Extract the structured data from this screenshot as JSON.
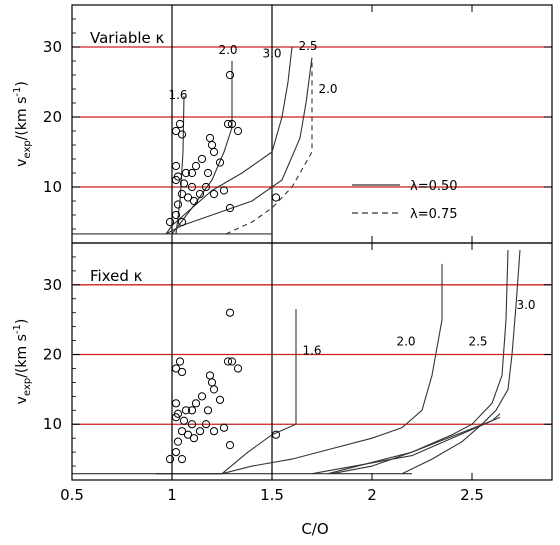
{
  "chart_data": {
    "type": "line",
    "xlabel": "C/O",
    "xlim": [
      0.5,
      2.9
    ],
    "x_ticks": [
      0.5,
      1,
      1.5,
      2,
      2.5
    ],
    "x_tick_labels": [
      "0.5",
      "1",
      "1.5",
      "2",
      "2.5"
    ],
    "panels": [
      {
        "title": "Variable κ",
        "ylabel": "v_exp /(km s^-1)",
        "ylim": [
          2,
          36
        ],
        "y_ticks": [
          10,
          20,
          30
        ],
        "y_tick_labels": [
          "10",
          "20",
          "30"
        ],
        "red_lines": [
          10,
          20,
          30
        ],
        "vertical_lines": [
          1.0,
          1.5
        ],
        "curves": [
          {
            "label": "1.6",
            "dash": false,
            "points": [
              [
                0.97,
                3.3
              ],
              [
                1.02,
                3.3
              ],
              [
                1.04,
                8
              ],
              [
                1.055,
                15
              ],
              [
                1.06,
                23
              ]
            ]
          },
          {
            "label": "2.0",
            "dash": false,
            "points": [
              [
                0.97,
                3.3
              ],
              [
                1.0,
                3.3
              ],
              [
                1.1,
                7
              ],
              [
                1.2,
                11
              ],
              [
                1.26,
                15
              ],
              [
                1.3,
                18.5
              ],
              [
                1.3,
                28
              ]
            ]
          },
          {
            "label": "3.0",
            "dash": false,
            "points": [
              [
                0.97,
                3.3
              ],
              [
                1.0,
                4.5
              ],
              [
                1.1,
                7
              ],
              [
                1.2,
                9.5
              ],
              [
                1.35,
                12
              ],
              [
                1.5,
                15
              ],
              [
                1.55,
                20
              ],
              [
                1.58,
                25
              ],
              [
                1.6,
                30
              ]
            ]
          },
          {
            "label": "2.5",
            "dash": false,
            "points": [
              [
                0.97,
                3.3
              ],
              [
                1.05,
                4.5
              ],
              [
                1.2,
                6
              ],
              [
                1.4,
                8
              ],
              [
                1.55,
                11
              ],
              [
                1.64,
                17
              ],
              [
                1.67,
                22
              ],
              [
                1.7,
                28.5
              ]
            ]
          },
          {
            "label": "2.0",
            "dash": true,
            "points": [
              [
                1.27,
                3.3
              ],
              [
                1.4,
                5
              ],
              [
                1.5,
                7
              ],
              [
                1.6,
                10
              ],
              [
                1.7,
                15
              ],
              [
                1.7,
                28
              ]
            ]
          },
          {
            "label": "",
            "dash": false,
            "points": [
              [
                0.5,
                3.3
              ],
              [
                1.5,
                3.3
              ]
            ]
          }
        ],
        "curve_labels": [
          {
            "text": "1.6",
            "x": 1.03,
            "y": 22.6
          },
          {
            "text": "2.0",
            "x": 1.28,
            "y": 29.0
          },
          {
            "text": "3.0",
            "x": 1.5,
            "y": 28.5
          },
          {
            "text": "2.5",
            "x": 1.68,
            "y": 29.6
          },
          {
            "text": "2.0",
            "x": 1.78,
            "y": 23.4
          }
        ],
        "legend": [
          {
            "label": "λ=0.50",
            "dash": false
          },
          {
            "label": "λ=0.75",
            "dash": true
          }
        ],
        "points": [
          [
            0.99,
            5
          ],
          [
            1.02,
            6
          ],
          [
            1.05,
            5
          ],
          [
            1.03,
            7.5
          ],
          [
            1.05,
            9
          ],
          [
            1.08,
            8.5
          ],
          [
            1.11,
            8
          ],
          [
            1.14,
            9
          ],
          [
            1.17,
            10
          ],
          [
            1.21,
            9
          ],
          [
            1.26,
            9.5
          ],
          [
            1.29,
            7
          ],
          [
            1.02,
            11
          ],
          [
            1.03,
            11.5
          ],
          [
            1.07,
            12
          ],
          [
            1.1,
            12
          ],
          [
            1.12,
            13
          ],
          [
            1.15,
            14
          ],
          [
            1.18,
            12
          ],
          [
            1.21,
            15
          ],
          [
            1.2,
            16
          ],
          [
            1.24,
            13.5
          ],
          [
            1.19,
            17
          ],
          [
            1.02,
            18
          ],
          [
            1.04,
            19
          ],
          [
            1.05,
            17.5
          ],
          [
            1.28,
            19
          ],
          [
            1.3,
            19
          ],
          [
            1.33,
            18
          ],
          [
            1.29,
            26
          ],
          [
            1.06,
            10.5
          ],
          [
            1.02,
            13
          ],
          [
            1.1,
            10
          ],
          [
            1.52,
            8.5
          ]
        ]
      },
      {
        "title": "Fixed κ",
        "ylabel": "v_exp /(km s^-1)",
        "ylim": [
          2,
          36
        ],
        "y_ticks": [
          10,
          20,
          30
        ],
        "y_tick_labels": [
          "10",
          "20",
          "30"
        ],
        "red_lines": [
          10,
          20,
          30
        ],
        "vertical_lines": [
          1.0,
          1.5
        ],
        "curves": [
          {
            "label": "1.6",
            "dash": false,
            "points": [
              [
                0.92,
                2.9
              ],
              [
                1.25,
                2.9
              ],
              [
                1.38,
                6
              ],
              [
                1.5,
                8.5
              ],
              [
                1.62,
                10
              ],
              [
                1.62,
                26.5
              ]
            ]
          },
          {
            "label": "2.0",
            "dash": false,
            "points": [
              [
                0.92,
                2.9
              ],
              [
                1.25,
                2.9
              ],
              [
                1.4,
                4
              ],
              [
                1.6,
                5
              ],
              [
                1.8,
                6.5
              ],
              [
                2.0,
                8
              ],
              [
                2.15,
                9.5
              ],
              [
                2.25,
                12
              ],
              [
                2.3,
                17
              ],
              [
                2.35,
                25
              ],
              [
                2.35,
                33
              ]
            ]
          },
          {
            "label": "2.5",
            "dash": false,
            "points": [
              [
                1.8,
                2.9
              ],
              [
                2.0,
                4
              ],
              [
                2.2,
                6
              ],
              [
                2.4,
                8.5
              ],
              [
                2.5,
                10
              ],
              [
                2.6,
                13
              ],
              [
                2.65,
                17
              ],
              [
                2.67,
                25
              ],
              [
                2.68,
                35
              ]
            ]
          },
          {
            "label": "3.0",
            "dash": false,
            "points": [
              [
                2.15,
                2.9
              ],
              [
                2.3,
                5
              ],
              [
                2.45,
                7.5
              ],
              [
                2.55,
                10
              ],
              [
                2.62,
                12
              ],
              [
                2.68,
                15
              ],
              [
                2.7,
                20
              ],
              [
                2.72,
                27
              ],
              [
                2.74,
                35
              ]
            ]
          },
          {
            "label": "",
            "dash": false,
            "points": [
              [
                1.78,
                2.9
              ],
              [
                2.2,
                6
              ],
              [
                2.6,
                10.5
              ],
              [
                2.64,
                11.5
              ]
            ]
          },
          {
            "label": "",
            "dash": false,
            "points": [
              [
                1.7,
                2.9
              ],
              [
                2.2,
                5.5
              ],
              [
                2.56,
                10
              ],
              [
                2.64,
                11
              ]
            ]
          },
          {
            "label": "",
            "dash": false,
            "points": [
              [
                0.5,
                2.9
              ],
              [
                2.2,
                2.9
              ]
            ]
          }
        ],
        "curve_labels": [
          {
            "text": "1.6",
            "x": 1.7,
            "y": 20.0
          },
          {
            "text": "2.0",
            "x": 2.17,
            "y": 21.3
          },
          {
            "text": "2.5",
            "x": 2.53,
            "y": 21.3
          },
          {
            "text": "3.0",
            "x": 2.77,
            "y": 26.5
          }
        ],
        "legend": [],
        "points": [
          [
            0.99,
            5
          ],
          [
            1.02,
            6
          ],
          [
            1.05,
            5
          ],
          [
            1.03,
            7.5
          ],
          [
            1.05,
            9
          ],
          [
            1.08,
            8.5
          ],
          [
            1.11,
            8
          ],
          [
            1.14,
            9
          ],
          [
            1.17,
            10
          ],
          [
            1.21,
            9
          ],
          [
            1.26,
            9.5
          ],
          [
            1.29,
            7
          ],
          [
            1.02,
            11
          ],
          [
            1.03,
            11.5
          ],
          [
            1.07,
            12
          ],
          [
            1.1,
            12
          ],
          [
            1.12,
            13
          ],
          [
            1.15,
            14
          ],
          [
            1.18,
            12
          ],
          [
            1.21,
            15
          ],
          [
            1.2,
            16
          ],
          [
            1.24,
            13.5
          ],
          [
            1.19,
            17
          ],
          [
            1.02,
            18
          ],
          [
            1.04,
            19
          ],
          [
            1.05,
            17.5
          ],
          [
            1.28,
            19
          ],
          [
            1.3,
            19
          ],
          [
            1.33,
            18
          ],
          [
            1.29,
            26
          ],
          [
            1.06,
            10.5
          ],
          [
            1.02,
            13
          ],
          [
            1.1,
            10
          ],
          [
            1.52,
            8.5
          ]
        ]
      }
    ],
    "colors": {
      "axis": "#000000",
      "red_line": "#cc1f1f",
      "curve": "#333333",
      "marker": "#000000"
    }
  }
}
